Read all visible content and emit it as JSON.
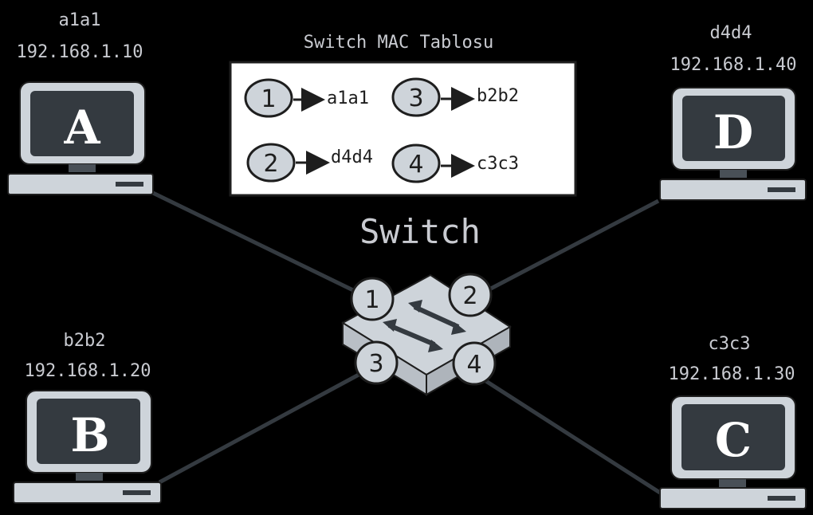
{
  "table_title": "Switch MAC Tablosu",
  "switch_label": "Switch",
  "mac_table": [
    {
      "port": "1",
      "mac": "a1a1"
    },
    {
      "port": "3",
      "mac": "b2b2"
    },
    {
      "port": "2",
      "mac": "d4d4"
    },
    {
      "port": "4",
      "mac": "c3c3"
    }
  ],
  "ports": [
    "1",
    "2",
    "3",
    "4"
  ],
  "computers": {
    "a": {
      "letter": "A",
      "mac": "a1a1",
      "ip": "192.168.1.10"
    },
    "b": {
      "letter": "B",
      "mac": "b2b2",
      "ip": "192.168.1.20"
    },
    "c": {
      "letter": "C",
      "mac": "c3c3",
      "ip": "192.168.1.30"
    },
    "d": {
      "letter": "D",
      "mac": "d4d4",
      "ip": "192.168.1.40"
    }
  },
  "colors": {
    "background": "#000000",
    "device": "#ced4da",
    "screen": "#343a40",
    "line": "#343a40",
    "table_bg": "#ffffff"
  }
}
